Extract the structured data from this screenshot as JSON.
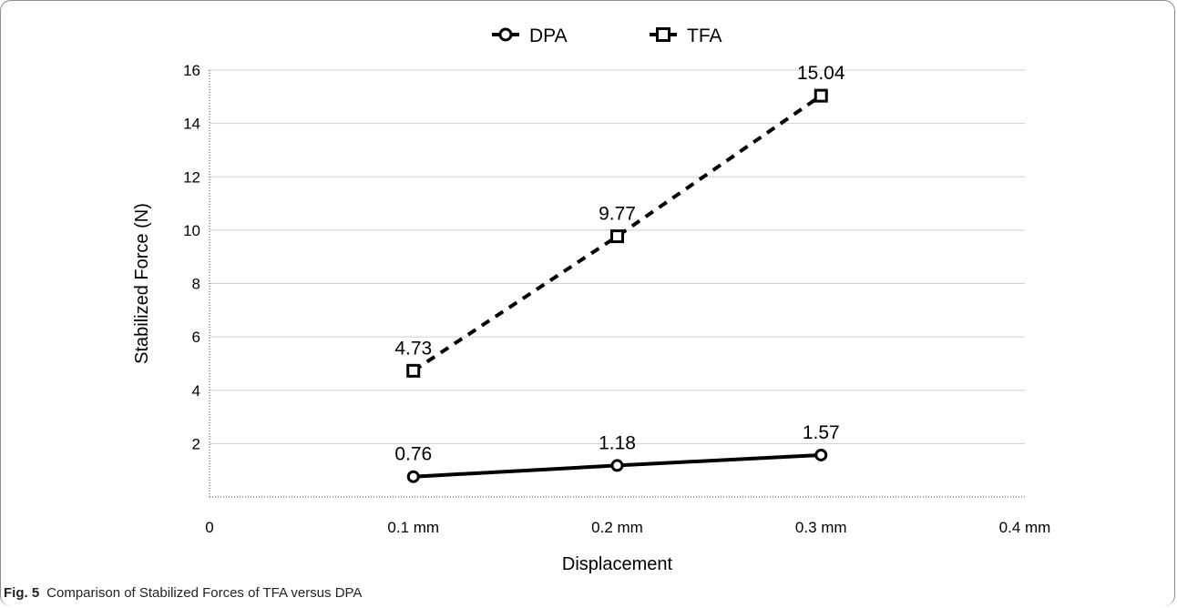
{
  "chart_data": {
    "type": "line",
    "title": "",
    "xlabel": "Displacement",
    "ylabel": "Stabilized Force (N)",
    "categories": [
      "0",
      "0.1 mm",
      "0.2 mm",
      "0.3 mm",
      "0.4 mm"
    ],
    "x": [
      0.1,
      0.2,
      0.3
    ],
    "xlim": [
      0,
      0.4
    ],
    "ylim": [
      0,
      16
    ],
    "yticks": [
      2,
      4,
      6,
      8,
      10,
      12,
      14,
      16
    ],
    "grid": true,
    "legend_position": "top",
    "series": [
      {
        "name": "DPA",
        "values": [
          0.76,
          1.18,
          1.57
        ],
        "labels": [
          "0.76",
          "1.18",
          "1.57"
        ],
        "marker": "circle",
        "line": "solid",
        "color": "#000000"
      },
      {
        "name": "TFA",
        "values": [
          4.73,
          9.77,
          15.04
        ],
        "labels": [
          "4.73",
          "9.77",
          "15.04"
        ],
        "marker": "square",
        "line": "dashed",
        "color": "#000000"
      }
    ]
  },
  "caption": {
    "fig_label": "Fig. 5",
    "text": "Comparison of Stabilized Forces of TFA versus DPA"
  }
}
